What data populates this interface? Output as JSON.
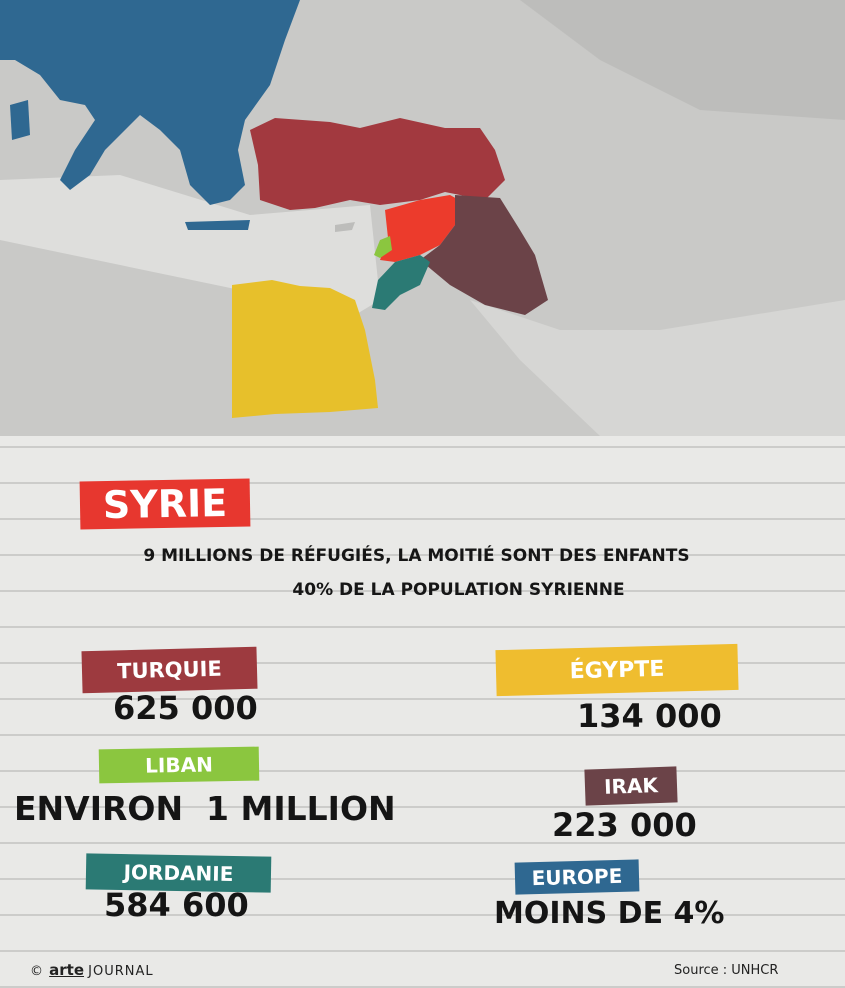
{
  "map": {
    "regions": [
      {
        "name": "europe-region",
        "color": "#2f6891"
      },
      {
        "name": "turkey-region",
        "color": "#a2393f"
      },
      {
        "name": "syria-region",
        "color": "#ec3b2c"
      },
      {
        "name": "lebanon-region",
        "color": "#8bc63f"
      },
      {
        "name": "jordan-region",
        "color": "#2b7a74"
      },
      {
        "name": "iraq-region",
        "color": "#6b4348"
      },
      {
        "name": "egypt-region",
        "color": "#e7c02b"
      }
    ]
  },
  "header": {
    "title": "SYRIE",
    "line1": "9 MILLIONS DE RÉFUGIÉS, LA MOITIÉ SONT DES ENFANTS",
    "line2": "40% DE LA POPULATION SYRIENNE"
  },
  "countries": {
    "turquie": {
      "label": "TURQUIE",
      "value": "625 000",
      "color": "#9d3a3f"
    },
    "liban": {
      "label": "LIBAN",
      "value": "ENVIRON  1 MILLION",
      "color": "#8bc63f"
    },
    "jordanie": {
      "label": "JORDANIE",
      "value": "584 600",
      "color": "#2b7a74"
    },
    "egypte": {
      "label": "ÉGYPTE",
      "value": "134 000",
      "color": "#efbd2f"
    },
    "irak": {
      "label": "IRAK",
      "value": "223 000",
      "color": "#6b4348"
    },
    "europe": {
      "label": "EUROPE",
      "value": "MOINS DE 4%",
      "color": "#2f6891"
    }
  },
  "footer": {
    "copyright": "©",
    "brand": "arte",
    "journal": "JOURNAL",
    "source": "Source :  UNHCR"
  }
}
